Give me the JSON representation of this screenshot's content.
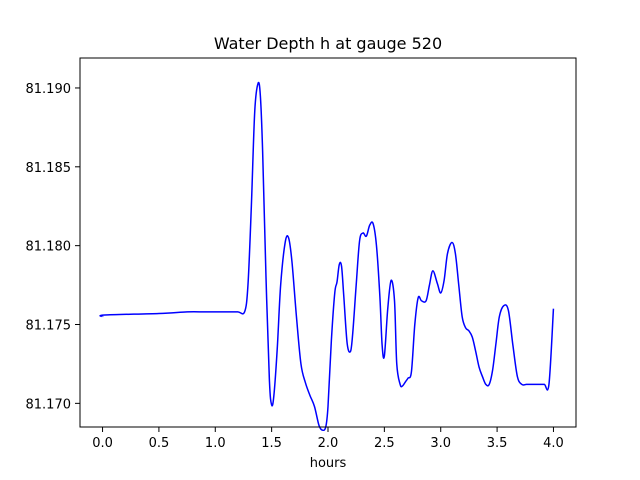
{
  "chart_data": {
    "type": "line",
    "title": "Water Depth h at gauge 520",
    "xlabel": "hours",
    "ylabel": "",
    "xlim": [
      -0.2,
      4.2
    ],
    "ylim": [
      81.1685,
      81.1919
    ],
    "xticks": [
      0.0,
      0.5,
      1.0,
      1.5,
      2.0,
      2.5,
      3.0,
      3.5,
      4.0
    ],
    "xtick_labels": [
      "0.0",
      "0.5",
      "1.0",
      "1.5",
      "2.0",
      "2.5",
      "3.0",
      "3.5",
      "4.0"
    ],
    "yticks": [
      81.17,
      81.175,
      81.18,
      81.185,
      81.19
    ],
    "ytick_labels": [
      "81.170",
      "81.175",
      "81.180",
      "81.185",
      "81.190"
    ],
    "grid": false,
    "series": [
      {
        "color": "#0000ff",
        "x": [
          0.0,
          0.02,
          0.5,
          0.75,
          0.9,
          1.0,
          1.1,
          1.2,
          1.26,
          1.29,
          1.32,
          1.35,
          1.38,
          1.4,
          1.42,
          1.45,
          1.48,
          1.5,
          1.52,
          1.55,
          1.58,
          1.62,
          1.65,
          1.68,
          1.72,
          1.76,
          1.8,
          1.84,
          1.88,
          1.92,
          1.95,
          1.98,
          2.0,
          2.03,
          2.06,
          2.08,
          2.1,
          2.12,
          2.14,
          2.17,
          2.2,
          2.22,
          2.25,
          2.28,
          2.31,
          2.34,
          2.37,
          2.4,
          2.43,
          2.46,
          2.48,
          2.5,
          2.53,
          2.56,
          2.59,
          2.61,
          2.64,
          2.66,
          2.69,
          2.71,
          2.74,
          2.77,
          2.8,
          2.83,
          2.87,
          2.9,
          2.93,
          2.97,
          3.0,
          3.03,
          3.06,
          3.1,
          3.13,
          3.16,
          3.19,
          3.22,
          3.25,
          3.28,
          3.31,
          3.34,
          3.37,
          3.4,
          3.43,
          3.46,
          3.49,
          3.52,
          3.56,
          3.6,
          3.64,
          3.68,
          3.72,
          3.76,
          3.8,
          3.84,
          3.88,
          3.92,
          3.96,
          4.0
        ],
        "y": [
          81.1755,
          81.1756,
          81.1757,
          81.1758,
          81.1758,
          81.1758,
          81.1758,
          81.1758,
          81.1758,
          81.1775,
          81.1825,
          81.1885,
          81.1903,
          81.1895,
          81.186,
          81.178,
          81.1715,
          81.1699,
          81.1705,
          81.1735,
          81.1775,
          81.1802,
          81.1805,
          81.179,
          81.1755,
          81.1725,
          81.1713,
          81.1705,
          81.1698,
          81.1686,
          81.1683,
          81.1685,
          81.1698,
          81.174,
          81.177,
          81.1777,
          81.1788,
          81.1787,
          81.1768,
          81.1738,
          81.1733,
          81.1745,
          81.1775,
          81.1803,
          81.1808,
          81.1806,
          81.1813,
          81.1814,
          81.18,
          81.1768,
          81.1737,
          81.173,
          81.176,
          81.1778,
          81.1765,
          81.1725,
          81.1712,
          81.1711,
          81.1714,
          81.1716,
          81.172,
          81.175,
          81.1767,
          81.1765,
          81.1765,
          81.1775,
          81.1784,
          81.1776,
          81.177,
          81.1778,
          81.1795,
          81.1802,
          81.1795,
          81.1775,
          81.1755,
          81.1748,
          81.1746,
          81.1742,
          81.1733,
          81.1723,
          81.1717,
          81.1712,
          81.1712,
          81.1721,
          81.1738,
          81.1755,
          81.1762,
          81.1759,
          81.1737,
          81.1717,
          81.1712,
          81.1712,
          81.1712,
          81.1712,
          81.1712,
          81.1712,
          81.1712,
          81.176
        ]
      }
    ]
  }
}
